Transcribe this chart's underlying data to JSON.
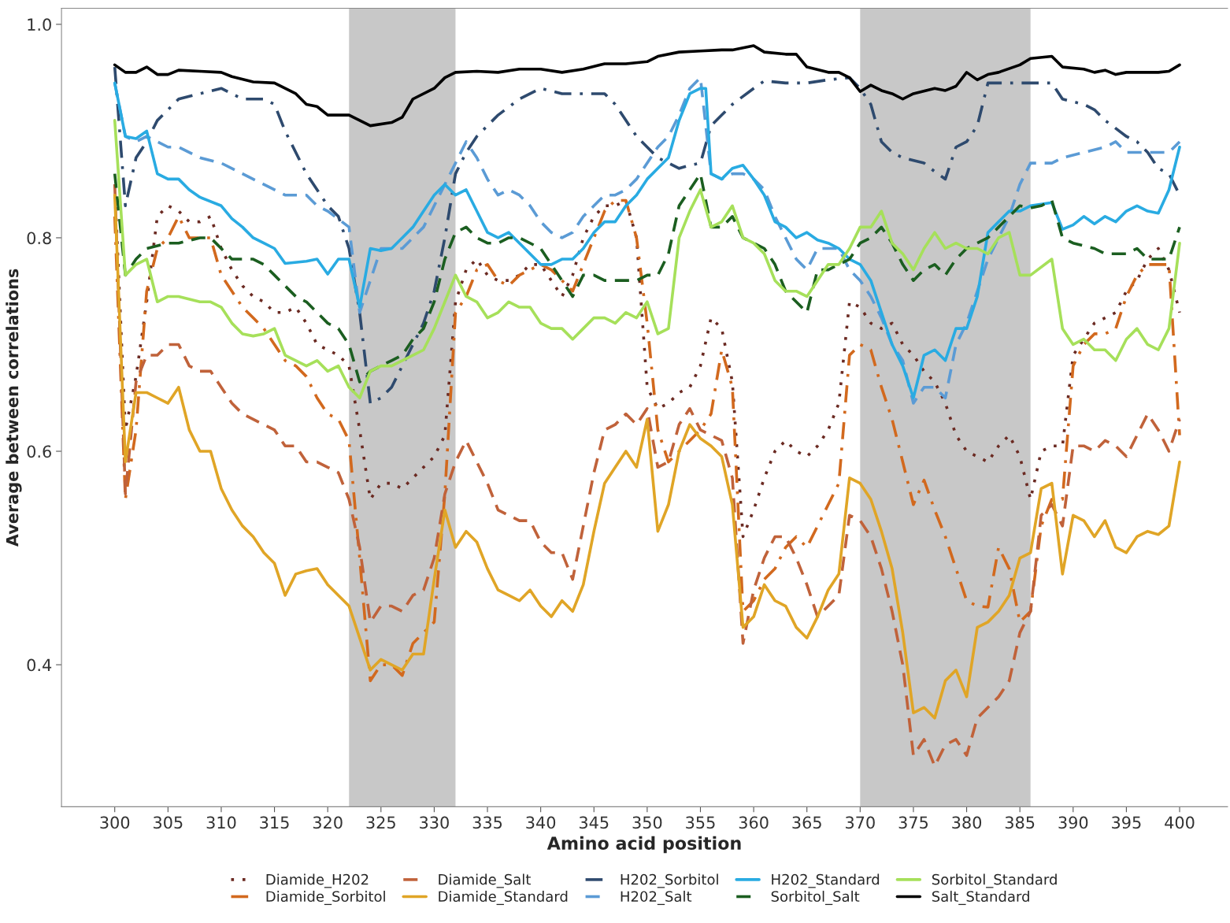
{
  "chart_data": {
    "type": "line",
    "xlabel": "Amino acid position",
    "ylabel": "Average between correlations",
    "xlim": [
      295,
      404.5
    ],
    "ylim": [
      0.267,
      1.015
    ],
    "xticks": [
      300,
      305,
      310,
      315,
      320,
      325,
      330,
      335,
      340,
      345,
      350,
      355,
      360,
      365,
      370,
      375,
      380,
      385,
      390,
      395,
      400
    ],
    "yticks": [
      0.4,
      0.6,
      0.8,
      {
        "value": 1.0,
        "label": "1.0"
      }
    ],
    "grid": false,
    "legend": "bottom",
    "bands": [
      {
        "axis": "x",
        "from": 322,
        "to": 332,
        "color": "#c8c8c8"
      },
      {
        "axis": "x",
        "from": 370,
        "to": 386,
        "color": "#c8c8c8"
      }
    ],
    "series": [
      {
        "name": "Diamide_H202",
        "color": "#6b2a22",
        "line_style": "dotted",
        "x": [
          300,
          301,
          302,
          303,
          304,
          305,
          306,
          307,
          308,
          309,
          310,
          311,
          312,
          313,
          314,
          315,
          316,
          317,
          318,
          319,
          320,
          321,
          322,
          323,
          324,
          325,
          326,
          327,
          328,
          329,
          330,
          331,
          332,
          333,
          334,
          335,
          336,
          337,
          338,
          339,
          340,
          341,
          342,
          343,
          344,
          345,
          346,
          347,
          348,
          349,
          350,
          351,
          352,
          353,
          354,
          355,
          356,
          357,
          358,
          359,
          360,
          361,
          362,
          363,
          364,
          365,
          366,
          367,
          368,
          369,
          370,
          371,
          372,
          373,
          374,
          375,
          376,
          377,
          378,
          379,
          380,
          381,
          382,
          383,
          384,
          385,
          386,
          387,
          388,
          389,
          390,
          391,
          392,
          393,
          394,
          395,
          396,
          397,
          398,
          399,
          400
        ],
        "values": [
          0.85,
          0.62,
          0.67,
          0.74,
          0.82,
          0.83,
          0.825,
          0.815,
          0.815,
          0.82,
          0.79,
          0.77,
          0.755,
          0.745,
          0.74,
          0.73,
          0.73,
          0.735,
          0.72,
          0.7,
          0.695,
          0.69,
          0.68,
          0.62,
          0.555,
          0.57,
          0.57,
          0.565,
          0.575,
          0.585,
          0.595,
          0.615,
          0.74,
          0.77,
          0.78,
          0.765,
          0.76,
          0.76,
          0.765,
          0.775,
          0.775,
          0.76,
          0.745,
          0.765,
          0.8,
          0.82,
          0.83,
          0.83,
          0.835,
          0.8,
          0.66,
          0.64,
          0.645,
          0.655,
          0.66,
          0.68,
          0.725,
          0.715,
          0.665,
          0.52,
          0.545,
          0.575,
          0.6,
          0.61,
          0.6,
          0.595,
          0.605,
          0.62,
          0.645,
          0.74,
          0.735,
          0.72,
          0.715,
          0.72,
          0.7,
          0.69,
          0.675,
          0.665,
          0.645,
          0.615,
          0.6,
          0.595,
          0.59,
          0.605,
          0.615,
          0.595,
          0.555,
          0.6,
          0.605,
          0.605,
          0.69,
          0.705,
          0.72,
          0.725,
          0.73,
          0.75,
          0.76,
          0.78,
          0.79,
          0.77,
          0.73
        ]
      },
      {
        "name": "Diamide_Sorbitol",
        "color": "#d2691e",
        "line_style": "dashdot",
        "x": [
          300,
          301,
          302,
          303,
          304,
          305,
          306,
          307,
          308,
          309,
          310,
          311,
          312,
          313,
          314,
          315,
          316,
          317,
          318,
          319,
          320,
          321,
          322,
          323,
          324,
          325,
          326,
          327,
          328,
          329,
          330,
          331,
          332,
          333,
          334,
          335,
          336,
          337,
          338,
          339,
          340,
          341,
          342,
          343,
          344,
          345,
          346,
          347,
          348,
          349,
          350,
          351,
          352,
          353,
          354,
          355,
          356,
          357,
          358,
          359,
          360,
          361,
          362,
          363,
          364,
          365,
          366,
          367,
          368,
          369,
          370,
          371,
          372,
          373,
          374,
          375,
          376,
          377,
          378,
          379,
          380,
          381,
          382,
          383,
          384,
          385,
          386,
          387,
          388,
          389,
          390,
          391,
          392,
          393,
          394,
          395,
          396,
          397,
          398,
          399,
          400
        ],
        "values": [
          0.82,
          0.555,
          0.62,
          0.75,
          0.79,
          0.8,
          0.82,
          0.8,
          0.8,
          0.8,
          0.765,
          0.75,
          0.735,
          0.725,
          0.715,
          0.7,
          0.685,
          0.68,
          0.67,
          0.65,
          0.635,
          0.63,
          0.61,
          0.5,
          0.385,
          0.4,
          0.4,
          0.39,
          0.42,
          0.43,
          0.44,
          0.56,
          0.73,
          0.745,
          0.77,
          0.775,
          0.76,
          0.755,
          0.765,
          0.77,
          0.775,
          0.77,
          0.76,
          0.75,
          0.775,
          0.8,
          0.825,
          0.835,
          0.835,
          0.8,
          0.72,
          0.62,
          0.59,
          0.6,
          0.61,
          0.62,
          0.635,
          0.695,
          0.66,
          0.45,
          0.46,
          0.48,
          0.49,
          0.51,
          0.52,
          0.51,
          0.53,
          0.55,
          0.57,
          0.69,
          0.7,
          0.695,
          0.66,
          0.63,
          0.59,
          0.55,
          0.573,
          0.545,
          0.52,
          0.49,
          0.46,
          0.455,
          0.454,
          0.51,
          0.49,
          0.44,
          0.45,
          0.53,
          0.555,
          0.555,
          0.68,
          0.7,
          0.71,
          0.71,
          0.715,
          0.745,
          0.765,
          0.775,
          0.775,
          0.775,
          0.615
        ]
      },
      {
        "name": "Diamide_Salt",
        "color": "#c0623a",
        "line_style": "dashed",
        "x": [
          300,
          301,
          302,
          303,
          304,
          305,
          306,
          307,
          308,
          309,
          310,
          311,
          312,
          313,
          314,
          315,
          316,
          317,
          318,
          319,
          320,
          321,
          322,
          323,
          324,
          325,
          326,
          327,
          328,
          329,
          330,
          331,
          332,
          333,
          334,
          335,
          336,
          337,
          338,
          339,
          340,
          341,
          342,
          343,
          344,
          345,
          346,
          347,
          348,
          349,
          350,
          351,
          352,
          353,
          354,
          355,
          356,
          357,
          358,
          359,
          360,
          361,
          362,
          363,
          364,
          365,
          366,
          367,
          368,
          369,
          370,
          371,
          372,
          373,
          374,
          375,
          376,
          377,
          378,
          379,
          380,
          381,
          382,
          383,
          384,
          385,
          386,
          387,
          388,
          389,
          390,
          391,
          392,
          393,
          394,
          395,
          396,
          397,
          398,
          399,
          400
        ],
        "values": [
          0.85,
          0.56,
          0.665,
          0.69,
          0.69,
          0.7,
          0.7,
          0.68,
          0.675,
          0.675,
          0.66,
          0.645,
          0.635,
          0.63,
          0.625,
          0.62,
          0.605,
          0.605,
          0.59,
          0.59,
          0.585,
          0.58,
          0.555,
          0.51,
          0.44,
          0.455,
          0.455,
          0.45,
          0.465,
          0.47,
          0.5,
          0.56,
          0.59,
          0.61,
          0.59,
          0.57,
          0.545,
          0.54,
          0.535,
          0.535,
          0.515,
          0.505,
          0.505,
          0.48,
          0.53,
          0.58,
          0.62,
          0.625,
          0.635,
          0.625,
          0.64,
          0.585,
          0.59,
          0.625,
          0.64,
          0.62,
          0.615,
          0.61,
          0.575,
          0.42,
          0.47,
          0.5,
          0.52,
          0.52,
          0.5,
          0.475,
          0.445,
          0.455,
          0.465,
          0.54,
          0.535,
          0.52,
          0.49,
          0.45,
          0.4,
          0.315,
          0.33,
          0.305,
          0.325,
          0.33,
          0.315,
          0.35,
          0.36,
          0.37,
          0.385,
          0.43,
          0.45,
          0.54,
          0.55,
          0.53,
          0.605,
          0.605,
          0.6,
          0.61,
          0.605,
          0.595,
          0.615,
          0.635,
          0.62,
          0.6,
          0.63
        ]
      },
      {
        "name": "Diamide_Standard",
        "color": "#e0a526",
        "line_style": "solid",
        "x": [
          300,
          301,
          302,
          303,
          304,
          305,
          306,
          307,
          308,
          309,
          310,
          311,
          312,
          313,
          314,
          315,
          316,
          317,
          318,
          319,
          320,
          321,
          322,
          323,
          324,
          325,
          326,
          327,
          328,
          329,
          330,
          331,
          332,
          333,
          334,
          335,
          336,
          337,
          338,
          339,
          340,
          341,
          342,
          343,
          344,
          345,
          346,
          347,
          348,
          349,
          350,
          351,
          352,
          353,
          354,
          355,
          356,
          357,
          358,
          359,
          360,
          361,
          362,
          363,
          364,
          365,
          366,
          367,
          368,
          369,
          370,
          371,
          372,
          373,
          374,
          375,
          376,
          377,
          378,
          379,
          380,
          381,
          382,
          383,
          384,
          385,
          386,
          387,
          388,
          389,
          390,
          391,
          392,
          393,
          394,
          395,
          396,
          397,
          398,
          399,
          400
        ],
        "values": [
          0.84,
          0.59,
          0.655,
          0.655,
          0.65,
          0.645,
          0.66,
          0.62,
          0.6,
          0.6,
          0.565,
          0.545,
          0.53,
          0.52,
          0.505,
          0.495,
          0.465,
          0.485,
          0.488,
          0.49,
          0.475,
          0.465,
          0.455,
          0.425,
          0.395,
          0.405,
          0.4,
          0.395,
          0.41,
          0.41,
          0.48,
          0.545,
          0.51,
          0.525,
          0.515,
          0.49,
          0.47,
          0.465,
          0.46,
          0.47,
          0.455,
          0.445,
          0.46,
          0.45,
          0.475,
          0.525,
          0.57,
          0.585,
          0.6,
          0.585,
          0.63,
          0.525,
          0.55,
          0.6,
          0.625,
          0.612,
          0.605,
          0.595,
          0.55,
          0.435,
          0.445,
          0.475,
          0.46,
          0.455,
          0.435,
          0.425,
          0.445,
          0.47,
          0.485,
          0.575,
          0.57,
          0.555,
          0.525,
          0.49,
          0.43,
          0.355,
          0.36,
          0.35,
          0.385,
          0.395,
          0.37,
          0.435,
          0.44,
          0.45,
          0.465,
          0.5,
          0.505,
          0.565,
          0.57,
          0.485,
          0.54,
          0.535,
          0.52,
          0.535,
          0.51,
          0.505,
          0.52,
          0.525,
          0.522,
          0.53,
          0.59
        ]
      },
      {
        "name": "H202_Sorbitol",
        "color": "#2e4a6e",
        "line_style": "dashdot",
        "x": [
          300,
          301,
          302,
          303,
          304,
          305,
          306,
          308,
          310,
          311,
          312,
          314,
          315,
          316,
          318,
          320,
          321,
          322,
          323,
          324,
          325,
          326,
          327,
          328,
          329,
          330,
          331,
          332,
          333,
          334,
          335,
          336,
          338,
          340,
          342,
          344,
          346,
          347,
          348,
          349,
          350,
          351,
          352,
          353,
          354,
          355,
          356,
          357,
          358,
          360,
          361,
          363,
          365,
          367,
          369,
          370,
          371,
          372,
          373,
          374,
          376,
          377,
          378,
          379,
          380,
          381,
          382,
          384,
          386,
          388,
          389,
          391,
          392,
          393,
          395,
          396,
          397,
          398,
          399,
          400
        ],
        "values": [
          0.96,
          0.83,
          0.875,
          0.89,
          0.91,
          0.92,
          0.93,
          0.935,
          0.94,
          0.935,
          0.93,
          0.93,
          0.925,
          0.9,
          0.86,
          0.83,
          0.82,
          0.79,
          0.73,
          0.645,
          0.65,
          0.66,
          0.68,
          0.7,
          0.72,
          0.75,
          0.8,
          0.86,
          0.88,
          0.895,
          0.905,
          0.915,
          0.93,
          0.94,
          0.935,
          0.935,
          0.935,
          0.925,
          0.91,
          0.895,
          0.885,
          0.875,
          0.87,
          0.865,
          0.868,
          0.87,
          0.905,
          0.915,
          0.925,
          0.94,
          0.947,
          0.945,
          0.945,
          0.948,
          0.95,
          0.94,
          0.925,
          0.89,
          0.88,
          0.875,
          0.87,
          0.862,
          0.855,
          0.885,
          0.89,
          0.905,
          0.945,
          0.945,
          0.945,
          0.945,
          0.93,
          0.925,
          0.92,
          0.91,
          0.895,
          0.89,
          0.88,
          0.865,
          0.86,
          0.84
        ]
      },
      {
        "name": "H202_Salt",
        "color": "#5b9bd5",
        "line_style": "dashed",
        "x": [
          300,
          301,
          302,
          303,
          304,
          305,
          306,
          308,
          310,
          312,
          314,
          315,
          316,
          318,
          319,
          320,
          322,
          323,
          325,
          327,
          328,
          329,
          330,
          331,
          332,
          333,
          334,
          335,
          336,
          337,
          338,
          339,
          340,
          341,
          342,
          343,
          344,
          345,
          346,
          347,
          348,
          349,
          350,
          351,
          352,
          353,
          354,
          355,
          356,
          357,
          358,
          359,
          360,
          361,
          362,
          363,
          364,
          365,
          366,
          367,
          368,
          369,
          370,
          371,
          372,
          373,
          374,
          375,
          376,
          377,
          378,
          379,
          380,
          381,
          382,
          383,
          384,
          385,
          386,
          388,
          389,
          391,
          393,
          394,
          395,
          398,
          399,
          400
        ],
        "values": [
          0.945,
          0.895,
          0.89,
          0.895,
          0.89,
          0.885,
          0.885,
          0.875,
          0.87,
          0.86,
          0.85,
          0.845,
          0.84,
          0.84,
          0.83,
          0.825,
          0.81,
          0.73,
          0.79,
          0.79,
          0.8,
          0.81,
          0.83,
          0.85,
          0.87,
          0.89,
          0.875,
          0.855,
          0.84,
          0.845,
          0.84,
          0.83,
          0.815,
          0.805,
          0.8,
          0.805,
          0.82,
          0.83,
          0.84,
          0.84,
          0.845,
          0.855,
          0.87,
          0.885,
          0.895,
          0.915,
          0.94,
          0.95,
          0.86,
          0.855,
          0.86,
          0.86,
          0.855,
          0.845,
          0.82,
          0.8,
          0.78,
          0.77,
          0.79,
          0.79,
          0.79,
          0.77,
          0.76,
          0.745,
          0.725,
          0.7,
          0.685,
          0.645,
          0.66,
          0.66,
          0.65,
          0.7,
          0.72,
          0.75,
          0.78,
          0.8,
          0.82,
          0.85,
          0.87,
          0.87,
          0.875,
          0.88,
          0.885,
          0.89,
          0.88,
          0.88,
          0.88,
          0.89
        ]
      },
      {
        "name": "H202_Standard",
        "color": "#29abe2",
        "line_style": "solid",
        "x": [
          300,
          301,
          302,
          303,
          304,
          305,
          306,
          307,
          308,
          310,
          311,
          312,
          313,
          314,
          315,
          316,
          318,
          319,
          320,
          321,
          322,
          323,
          324,
          325,
          326,
          327,
          328,
          329,
          330,
          331,
          332,
          333,
          334,
          335,
          336,
          337,
          338,
          339,
          340,
          341,
          342,
          343,
          344,
          345,
          346,
          347,
          348,
          349,
          350,
          351,
          352,
          353,
          354,
          355,
          355.5,
          356,
          357,
          358,
          359,
          360,
          361,
          362,
          363,
          364,
          365,
          366,
          367,
          368,
          369,
          370,
          371,
          372,
          373,
          374,
          375,
          376,
          377,
          378,
          379,
          380,
          381,
          382,
          383,
          384,
          385,
          386,
          388,
          389,
          390,
          391,
          392,
          393,
          394,
          395,
          396,
          397,
          398,
          399,
          400
        ],
        "values": [
          0.945,
          0.895,
          0.893,
          0.9,
          0.86,
          0.855,
          0.855,
          0.845,
          0.838,
          0.83,
          0.818,
          0.81,
          0.8,
          0.795,
          0.79,
          0.776,
          0.778,
          0.78,
          0.766,
          0.78,
          0.78,
          0.735,
          0.79,
          0.788,
          0.79,
          0.8,
          0.81,
          0.825,
          0.84,
          0.85,
          0.84,
          0.845,
          0.825,
          0.805,
          0.8,
          0.805,
          0.795,
          0.785,
          0.775,
          0.775,
          0.78,
          0.78,
          0.79,
          0.805,
          0.815,
          0.815,
          0.83,
          0.84,
          0.855,
          0.865,
          0.875,
          0.91,
          0.935,
          0.94,
          0.94,
          0.86,
          0.855,
          0.865,
          0.868,
          0.855,
          0.84,
          0.815,
          0.81,
          0.8,
          0.805,
          0.798,
          0.795,
          0.79,
          0.78,
          0.775,
          0.76,
          0.73,
          0.7,
          0.68,
          0.65,
          0.69,
          0.695,
          0.685,
          0.715,
          0.715,
          0.745,
          0.805,
          0.815,
          0.825,
          0.825,
          0.83,
          0.833,
          0.808,
          0.812,
          0.82,
          0.813,
          0.82,
          0.815,
          0.825,
          0.83,
          0.825,
          0.823,
          0.845,
          0.885
        ]
      },
      {
        "name": "Sorbitol_Salt",
        "color": "#1b5e20",
        "line_style": "dashed",
        "x": [
          300,
          301,
          302,
          303,
          305,
          306,
          308,
          309,
          310,
          311,
          313,
          314,
          315,
          316,
          317,
          318,
          319,
          320,
          321,
          322,
          323,
          324,
          326,
          327,
          328,
          329,
          330,
          331,
          332,
          333,
          334,
          335,
          336,
          337,
          338,
          340,
          341,
          342,
          343,
          344,
          345,
          346,
          348,
          349,
          350,
          351,
          352,
          353,
          354,
          355,
          356,
          357,
          358,
          359,
          361,
          362,
          363,
          364,
          365,
          366,
          367,
          368,
          369,
          370,
          371,
          372,
          373,
          374,
          375,
          376,
          377,
          378,
          379,
          380,
          381,
          382,
          383,
          384,
          385,
          386,
          387,
          388,
          389,
          390,
          392,
          393,
          395,
          396,
          397,
          399,
          400
        ],
        "values": [
          0.86,
          0.765,
          0.78,
          0.79,
          0.795,
          0.795,
          0.8,
          0.8,
          0.79,
          0.78,
          0.78,
          0.775,
          0.765,
          0.755,
          0.745,
          0.74,
          0.73,
          0.72,
          0.715,
          0.7,
          0.665,
          0.675,
          0.685,
          0.69,
          0.705,
          0.715,
          0.74,
          0.78,
          0.805,
          0.81,
          0.8,
          0.795,
          0.795,
          0.8,
          0.8,
          0.79,
          0.775,
          0.76,
          0.745,
          0.765,
          0.765,
          0.76,
          0.76,
          0.76,
          0.765,
          0.765,
          0.785,
          0.83,
          0.845,
          0.86,
          0.81,
          0.81,
          0.82,
          0.8,
          0.79,
          0.775,
          0.75,
          0.74,
          0.73,
          0.77,
          0.77,
          0.775,
          0.78,
          0.795,
          0.8,
          0.81,
          0.795,
          0.775,
          0.76,
          0.77,
          0.775,
          0.765,
          0.78,
          0.79,
          0.795,
          0.8,
          0.81,
          0.82,
          0.83,
          0.828,
          0.83,
          0.835,
          0.8,
          0.795,
          0.79,
          0.785,
          0.785,
          0.79,
          0.78,
          0.78,
          0.81
        ]
      },
      {
        "name": "Sorbitol_Standard",
        "color": "#a6e05a",
        "line_style": "solid",
        "x": [
          300,
          301,
          302,
          303,
          304,
          305,
          306,
          308,
          309,
          310,
          311,
          312,
          313,
          314,
          315,
          316,
          317,
          318,
          319,
          320,
          321,
          322,
          323,
          324,
          325,
          326,
          327,
          328,
          329,
          330,
          331,
          332,
          333,
          334,
          335,
          336,
          337,
          338,
          339,
          340,
          341,
          342,
          343,
          344,
          345,
          346,
          347,
          348,
          349,
          350,
          351,
          352,
          353,
          354,
          355,
          356,
          357,
          358,
          359,
          360,
          361,
          362,
          363,
          364,
          365,
          366,
          367,
          368,
          369,
          370,
          371,
          372,
          373,
          374,
          375,
          376,
          377,
          378,
          379,
          380,
          381,
          382,
          383,
          384,
          385,
          386,
          388,
          389,
          390,
          391,
          392,
          393,
          394,
          395,
          396,
          397,
          398,
          399,
          400
        ],
        "values": [
          0.91,
          0.765,
          0.775,
          0.78,
          0.74,
          0.745,
          0.745,
          0.74,
          0.74,
          0.735,
          0.72,
          0.71,
          0.708,
          0.71,
          0.715,
          0.69,
          0.685,
          0.68,
          0.685,
          0.675,
          0.68,
          0.66,
          0.65,
          0.675,
          0.68,
          0.68,
          0.685,
          0.69,
          0.695,
          0.715,
          0.74,
          0.765,
          0.745,
          0.74,
          0.725,
          0.73,
          0.74,
          0.735,
          0.735,
          0.72,
          0.715,
          0.715,
          0.705,
          0.715,
          0.725,
          0.725,
          0.72,
          0.73,
          0.725,
          0.74,
          0.71,
          0.715,
          0.8,
          0.825,
          0.845,
          0.81,
          0.815,
          0.83,
          0.8,
          0.795,
          0.785,
          0.76,
          0.75,
          0.75,
          0.745,
          0.76,
          0.775,
          0.775,
          0.79,
          0.81,
          0.81,
          0.825,
          0.795,
          0.785,
          0.77,
          0.79,
          0.805,
          0.79,
          0.795,
          0.79,
          0.79,
          0.785,
          0.8,
          0.805,
          0.765,
          0.765,
          0.78,
          0.715,
          0.7,
          0.705,
          0.695,
          0.695,
          0.685,
          0.705,
          0.715,
          0.7,
          0.695,
          0.715,
          0.795
        ]
      },
      {
        "name": "Salt_Standard",
        "color": "#000000",
        "line_style": "solid",
        "x": [
          300,
          301,
          302,
          303,
          304,
          305,
          306,
          308,
          310,
          311,
          313,
          315,
          316,
          317,
          318,
          319,
          320,
          322,
          324,
          326,
          327,
          328,
          330,
          331,
          332,
          334,
          336,
          338,
          340,
          342,
          344,
          346,
          348,
          350,
          351,
          353,
          355,
          357,
          358,
          360,
          361,
          363,
          364,
          365,
          367,
          368,
          369,
          370,
          371,
          372,
          373,
          374,
          375,
          377,
          378,
          379,
          380,
          381,
          382,
          383,
          385,
          386,
          388,
          389,
          391,
          392,
          393,
          394,
          395,
          397,
          398,
          399,
          400
        ],
        "values": [
          0.962,
          0.955,
          0.955,
          0.96,
          0.953,
          0.953,
          0.957,
          0.956,
          0.955,
          0.951,
          0.946,
          0.945,
          0.94,
          0.935,
          0.925,
          0.923,
          0.915,
          0.915,
          0.905,
          0.908,
          0.913,
          0.93,
          0.94,
          0.95,
          0.955,
          0.956,
          0.955,
          0.958,
          0.958,
          0.955,
          0.958,
          0.963,
          0.963,
          0.965,
          0.97,
          0.974,
          0.975,
          0.976,
          0.976,
          0.98,
          0.974,
          0.972,
          0.972,
          0.96,
          0.955,
          0.955,
          0.95,
          0.937,
          0.943,
          0.938,
          0.935,
          0.93,
          0.935,
          0.94,
          0.938,
          0.942,
          0.955,
          0.948,
          0.953,
          0.955,
          0.962,
          0.968,
          0.97,
          0.96,
          0.958,
          0.955,
          0.957,
          0.953,
          0.955,
          0.955,
          0.955,
          0.956,
          0.962
        ]
      }
    ]
  }
}
